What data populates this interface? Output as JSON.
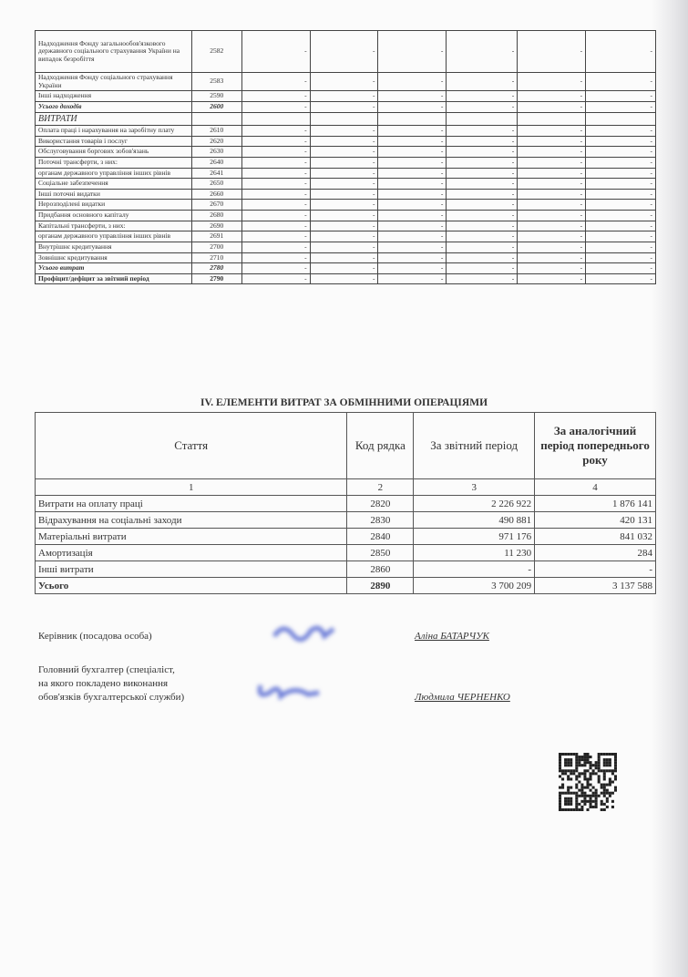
{
  "top_table": {
    "rows": [
      {
        "label": "Надходження Фонду загальнообов'язкового державного соціального страхування України на випадок безробіття",
        "code": "2582",
        "values": [
          "-",
          "-",
          "-",
          "-",
          "-",
          "-"
        ],
        "style": ""
      },
      {
        "label": "Надходження Фонду соціального страхування України",
        "code": "2583",
        "values": [
          "-",
          "-",
          "-",
          "-",
          "-",
          "-"
        ],
        "style": ""
      },
      {
        "label": "Інші надходження",
        "code": "2590",
        "values": [
          "-",
          "-",
          "-",
          "-",
          "-",
          "-"
        ],
        "style": ""
      },
      {
        "label": "Усього доходів",
        "code": "2600",
        "values": [
          "-",
          "-",
          "-",
          "-",
          "-",
          "-"
        ],
        "style": "it"
      },
      {
        "label": "ВИТРАТИ",
        "code": "",
        "values": [
          "",
          "",
          "",
          "",
          "",
          ""
        ],
        "style": "sec"
      },
      {
        "label": "Оплата праці і нарахування на заробітну плату",
        "code": "2610",
        "values": [
          "-",
          "-",
          "-",
          "-",
          "-",
          "-"
        ],
        "style": ""
      },
      {
        "label": "Використання товарів і послуг",
        "code": "2620",
        "values": [
          "-",
          "-",
          "-",
          "-",
          "-",
          "-"
        ],
        "style": ""
      },
      {
        "label": "Обслуговування боргових зобов'язань",
        "code": "2630",
        "values": [
          "-",
          "-",
          "-",
          "-",
          "-",
          "-"
        ],
        "style": ""
      },
      {
        "label": "Поточні трансферти, з них:",
        "code": "2640",
        "values": [
          "-",
          "-",
          "-",
          "-",
          "-",
          "-"
        ],
        "style": ""
      },
      {
        "label": "органам державного управління інших рівнів",
        "code": "2641",
        "values": [
          "-",
          "-",
          "-",
          "-",
          "-",
          "-"
        ],
        "style": ""
      },
      {
        "label": "Соціальне забезпечення",
        "code": "2650",
        "values": [
          "-",
          "-",
          "-",
          "-",
          "-",
          "-"
        ],
        "style": ""
      },
      {
        "label": "Інші поточні видатки",
        "code": "2660",
        "values": [
          "-",
          "-",
          "-",
          "-",
          "-",
          "-"
        ],
        "style": ""
      },
      {
        "label": "Нерозподілені видатки",
        "code": "2670",
        "values": [
          "-",
          "-",
          "-",
          "-",
          "-",
          "-"
        ],
        "style": ""
      },
      {
        "label": "Придбання основного капіталу",
        "code": "2680",
        "values": [
          "-",
          "-",
          "-",
          "-",
          "-",
          "-"
        ],
        "style": ""
      },
      {
        "label": "Капітальні трансферти, з них:",
        "code": "2690",
        "values": [
          "-",
          "-",
          "-",
          "-",
          "-",
          "-"
        ],
        "style": ""
      },
      {
        "label": "органам державного управління інших рівнів",
        "code": "2691",
        "values": [
          "-",
          "-",
          "-",
          "-",
          "-",
          "-"
        ],
        "style": ""
      },
      {
        "label": "Внутрішнє кредитування",
        "code": "2700",
        "values": [
          "-",
          "-",
          "-",
          "-",
          "-",
          "-"
        ],
        "style": ""
      },
      {
        "label": "Зовнішнє кредитування",
        "code": "2710",
        "values": [
          "-",
          "-",
          "-",
          "-",
          "-",
          "-"
        ],
        "style": ""
      },
      {
        "label": "Усього витрат",
        "code": "2780",
        "values": [
          "-",
          "-",
          "-",
          "-",
          "-",
          "-"
        ],
        "style": "it"
      },
      {
        "label": "Профіцит/дефіцит за звітний період",
        "code": "2790",
        "values": [
          "-",
          "-",
          "-",
          "-",
          "-",
          "-"
        ],
        "style": "b"
      }
    ]
  },
  "section4": {
    "title": "IV. ЕЛЕМЕНТИ ВИТРАТ ЗА ОБМІННИМИ ОПЕРАЦІЯМИ",
    "headers": [
      "Стаття",
      "Код рядка",
      "За звітний період",
      "За аналогічний період попереднього року"
    ],
    "col_numbers": [
      "1",
      "2",
      "3",
      "4"
    ],
    "rows": [
      {
        "label": "Витрати на оплату праці",
        "code": "2820",
        "current": "2 226 922",
        "previous": "1 876 141"
      },
      {
        "label": "Відрахування на соціальні заходи",
        "code": "2830",
        "current": "490 881",
        "previous": "420 131"
      },
      {
        "label": "Матеріальні витрати",
        "code": "2840",
        "current": "971 176",
        "previous": "841 032"
      },
      {
        "label": "Амортизація",
        "code": "2850",
        "current": "11 230",
        "previous": "284"
      },
      {
        "label": "Інші витрати",
        "code": "2860",
        "current": "-",
        "previous": "-"
      },
      {
        "label": "Усього",
        "code": "2890",
        "current": "3 700 209",
        "previous": "3 137 588"
      }
    ]
  },
  "signatures": {
    "head_label": "Керівник (посадова особа)",
    "head_name": "Аліна БАТАРЧУК",
    "accountant_label_1": "Головний бухгалтер (спеціаліст,",
    "accountant_label_2": "на якого покладено виконання",
    "accountant_label_3": "обов'язків бухгалтерської служби)",
    "accountant_name": "Людмила ЧЕРНЕНКО"
  },
  "colors": {
    "signature_ink": "#6f7fd8"
  }
}
